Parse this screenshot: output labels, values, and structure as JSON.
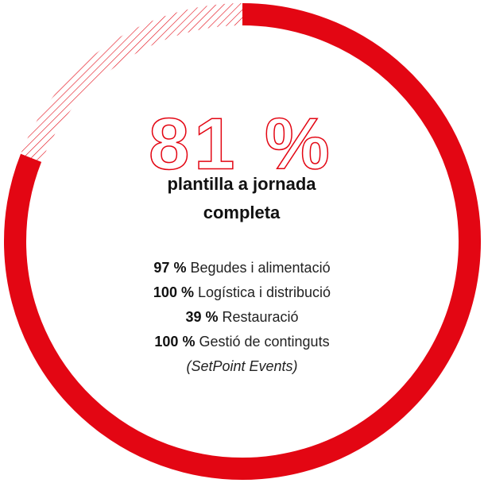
{
  "chart_data": {
    "type": "donut",
    "values": [
      81
    ],
    "value_labels": [
      "81 %"
    ],
    "ylim": [
      0,
      100
    ],
    "color": "#e30613",
    "subtitle": "plantilla a jornada completa",
    "breakdown": [
      {
        "value_label": "97 %",
        "name": "Begudes i alimentació"
      },
      {
        "value_label": "100 %",
        "name": "Logística i distribució"
      },
      {
        "value_label": "39 %",
        "name": "Restauració"
      },
      {
        "value_label": "100 %",
        "name": "Gestió de continguts",
        "note": "(SetPoint Events)"
      }
    ]
  }
}
